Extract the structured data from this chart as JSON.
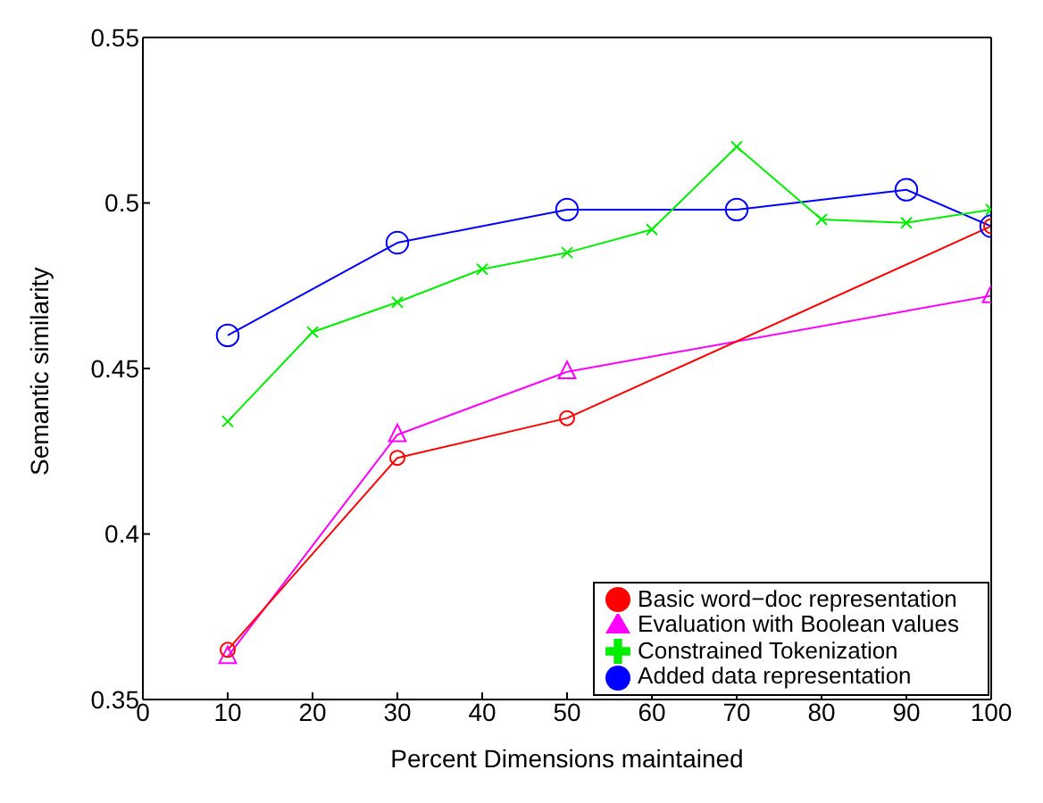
{
  "chart_data": {
    "type": "line",
    "xlabel": "Percent Dimensions maintained",
    "ylabel": "Semantic similarity",
    "xlim": [
      0,
      100
    ],
    "xticks": [
      0,
      10,
      20,
      30,
      40,
      50,
      60,
      70,
      80,
      90,
      100
    ],
    "ylim": [
      0.35,
      0.55
    ],
    "yticks": [
      0.35,
      0.4,
      0.45,
      0.5,
      0.55
    ],
    "grid": false,
    "legend": "bottom right",
    "line_style": "solid",
    "series": [
      {
        "name": "Basic word−doc representation",
        "color": "#ff0000",
        "marker": "circle",
        "x": [
          10,
          30,
          50,
          100
        ],
        "values": [
          0.365,
          0.423,
          0.435,
          0.493
        ]
      },
      {
        "name": "Evaluation with Boolean values",
        "color": "#ff00ff",
        "marker": "triangle",
        "x": [
          10,
          30,
          50,
          100
        ],
        "values": [
          0.363,
          0.43,
          0.449,
          0.472
        ]
      },
      {
        "name": "Constrained Tokenization",
        "color": "#00ee00",
        "marker": "cross",
        "x": [
          10,
          20,
          30,
          40,
          50,
          60,
          70,
          80,
          90,
          100
        ],
        "values": [
          0.434,
          0.461,
          0.47,
          0.48,
          0.485,
          0.492,
          0.517,
          0.495,
          0.494,
          0.498
        ]
      },
      {
        "name": "Added data representation",
        "color": "#0000ff",
        "marker": "circle",
        "x": [
          10,
          30,
          50,
          70,
          90,
          100
        ],
        "values": [
          0.46,
          0.488,
          0.498,
          0.498,
          0.504,
          0.493
        ]
      }
    ]
  }
}
